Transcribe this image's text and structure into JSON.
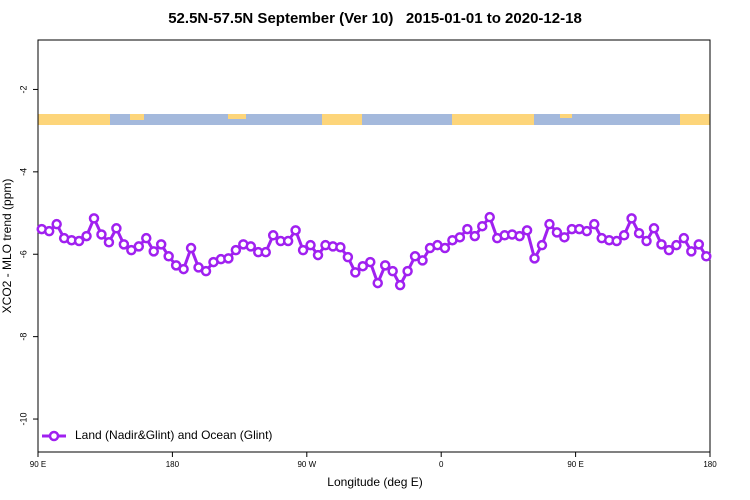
{
  "chart_data": {
    "type": "line",
    "title": "52.5N-57.5N September (Ver 10)   2015-01-01 to 2020-12-18",
    "x_label": "Longitude (deg E)",
    "y_label": "XCO2 - MLO trend (ppm)",
    "xlim": [
      90,
      540
    ],
    "ylim": [
      -10.8,
      -0.8
    ],
    "xticks": [
      {
        "value": 90,
        "label": "90 E"
      },
      {
        "value": 180,
        "label": "180"
      },
      {
        "value": 270,
        "label": "90 W"
      },
      {
        "value": 360,
        "label": "0"
      },
      {
        "value": 450,
        "label": "90 E"
      },
      {
        "value": 540,
        "label": "180"
      }
    ],
    "yticks": [
      -2,
      -4,
      -6,
      -8,
      -10
    ],
    "legend": "bottom-left",
    "series": [
      {
        "name": "Land (Nadir&Glint) and Ocean (Glint)",
        "color": "#a020f0",
        "x": [
          92.5,
          97.5,
          102.5,
          107.5,
          112.5,
          117.5,
          122.5,
          127.5,
          132.5,
          137.5,
          142.5,
          147.5,
          152.5,
          157.5,
          162.5,
          167.5,
          172.5,
          177.5,
          182.5,
          187.5,
          192.5,
          197.5,
          202.5,
          207.5,
          212.5,
          217.5,
          222.5,
          227.5,
          232.5,
          237.5,
          242.5,
          247.5,
          252.5,
          257.5,
          262.5,
          267.5,
          272.5,
          277.5,
          282.5,
          287.5,
          292.5,
          297.5,
          302.5,
          307.5,
          312.5,
          317.5,
          322.5,
          327.5,
          332.5,
          337.5,
          342.5,
          347.5,
          352.5,
          357.5,
          362.5,
          367.5,
          372.5,
          377.5,
          382.5,
          387.5,
          392.5,
          397.5,
          402.5,
          407.5,
          412.5,
          417.5,
          422.5,
          427.5,
          432.5,
          437.5,
          442.5,
          447.5,
          452.5,
          457.5,
          462.5,
          467.5,
          472.5,
          477.5,
          482.5,
          487.5,
          492.5,
          497.5,
          502.5,
          507.5,
          512.5,
          517.5,
          522.5,
          527.5,
          532.5,
          537.5
        ],
        "values": [
          -5.39,
          -5.44,
          -5.27,
          -5.61,
          -5.66,
          -5.68,
          -5.56,
          -5.13,
          -5.52,
          -5.71,
          -5.37,
          -5.76,
          -5.9,
          -5.81,
          -5.61,
          -5.93,
          -5.76,
          -6.05,
          -6.27,
          -6.36,
          -5.85,
          -6.32,
          -6.41,
          -6.19,
          -6.12,
          -6.1,
          -5.9,
          -5.76,
          -5.81,
          -5.95,
          -5.95,
          -5.54,
          -5.68,
          -5.68,
          -5.42,
          -5.9,
          -5.78,
          -6.02,
          -5.78,
          -5.81,
          -5.83,
          -6.07,
          -6.44,
          -6.29,
          -6.19,
          -6.7,
          -6.27,
          -6.41,
          -6.75,
          -6.41,
          -6.05,
          -6.15,
          -5.85,
          -5.78,
          -5.85,
          -5.66,
          -5.59,
          -5.39,
          -5.56,
          -5.32,
          -5.1,
          -5.61,
          -5.54,
          -5.52,
          -5.56,
          -5.42,
          -6.1,
          -5.78,
          -5.27,
          -5.47,
          -5.59,
          -5.39,
          -5.39,
          -5.44,
          -5.27,
          -5.61,
          -5.66,
          -5.68,
          -5.54,
          -5.13,
          -5.49,
          -5.68,
          -5.37,
          -5.76,
          -5.9,
          -5.78,
          -5.61,
          -5.93,
          -5.76,
          -6.05
        ]
      }
    ]
  }
}
